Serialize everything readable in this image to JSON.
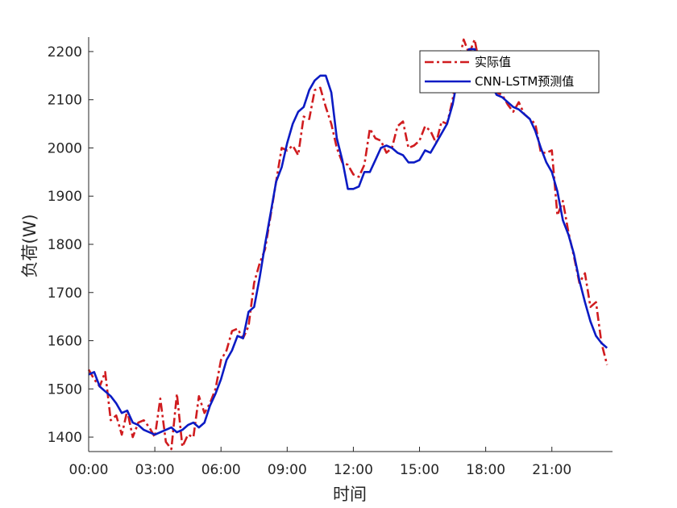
{
  "chart_data": {
    "type": "line",
    "title": "",
    "xlabel": "时间",
    "ylabel": "负荷(W)",
    "xlim": [
      0,
      23.75
    ],
    "ylim": [
      1370,
      2230
    ],
    "x_ticks": [
      0,
      3,
      6,
      9,
      12,
      15,
      18,
      21
    ],
    "x_tick_labels": [
      "00:00",
      "03:00",
      "06:00",
      "09:00",
      "12:00",
      "15:00",
      "18:00",
      "21:00"
    ],
    "y_ticks": [
      1400,
      1500,
      1600,
      1700,
      1800,
      1900,
      2000,
      2100,
      2200
    ],
    "y_tick_labels": [
      "1400",
      "1500",
      "1600",
      "1700",
      "1800",
      "1900",
      "2000",
      "2100",
      "2200"
    ],
    "grid": false,
    "legend_position": "top-right",
    "x_step_hours": 0.25,
    "series": [
      {
        "name": "实际值",
        "color": "#d01c1f",
        "style": "dash-dot",
        "values": [
          1540,
          1520,
          1505,
          1535,
          1435,
          1445,
          1405,
          1455,
          1400,
          1430,
          1435,
          1420,
          1400,
          1480,
          1390,
          1375,
          1490,
          1380,
          1405,
          1400,
          1485,
          1450,
          1470,
          1500,
          1560,
          1580,
          1620,
          1625,
          1605,
          1630,
          1720,
          1760,
          1790,
          1860,
          1930,
          2000,
          1995,
          2005,
          1985,
          2065,
          2060,
          2120,
          2125,
          2085,
          2050,
          2000,
          1970,
          1965,
          1945,
          1940,
          1965,
          2040,
          2020,
          2015,
          1990,
          2000,
          2045,
          2055,
          2000,
          2005,
          2015,
          2045,
          2035,
          2010,
          2055,
          2050,
          2100,
          2170,
          2225,
          2195,
          2225,
          2165,
          2140,
          2120,
          2115,
          2110,
          2090,
          2075,
          2095,
          2070,
          2060,
          2050,
          1990,
          1990,
          1995,
          1860,
          1890,
          1825,
          1775,
          1720,
          1740,
          1670,
          1680,
          1595,
          1550
        ]
      },
      {
        "name": "CNN-LSTM预测值",
        "color": "#0b1bc4",
        "style": "solid",
        "values": [
          1530,
          1535,
          1505,
          1495,
          1485,
          1470,
          1450,
          1455,
          1430,
          1425,
          1415,
          1410,
          1405,
          1410,
          1415,
          1420,
          1410,
          1415,
          1425,
          1430,
          1420,
          1430,
          1465,
          1490,
          1520,
          1560,
          1580,
          1610,
          1605,
          1660,
          1670,
          1730,
          1800,
          1865,
          1930,
          1960,
          2010,
          2050,
          2075,
          2085,
          2120,
          2140,
          2150,
          2150,
          2115,
          2020,
          1975,
          1915,
          1915,
          1920,
          1950,
          1950,
          1975,
          2000,
          2005,
          2000,
          1990,
          1985,
          1970,
          1970,
          1975,
          1995,
          1990,
          2010,
          2030,
          2050,
          2090,
          2150,
          2185,
          2205,
          2205,
          2175,
          2155,
          2130,
          2110,
          2105,
          2095,
          2085,
          2080,
          2070,
          2060,
          2035,
          2000,
          1970,
          1950,
          1910,
          1850,
          1820,
          1780,
          1725,
          1680,
          1640,
          1610,
          1595,
          1585
        ]
      }
    ]
  }
}
